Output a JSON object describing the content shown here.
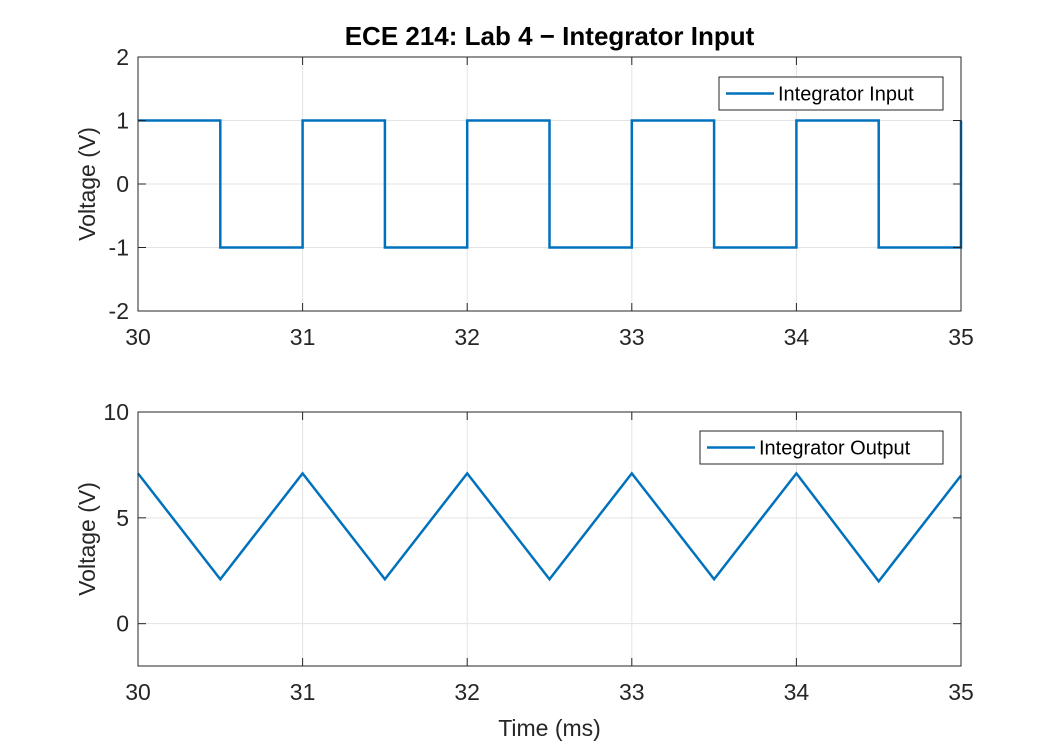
{
  "figure": {
    "background": "#ffffff",
    "line_color": "#0072BD"
  },
  "chart_data": [
    {
      "type": "line",
      "title": "ECE 214: Lab 4 − Integrator Input",
      "xlabel": "",
      "ylabel": "Voltage (V)",
      "xlim": [
        30,
        35
      ],
      "ylim": [
        -2,
        2
      ],
      "xticks": [
        30,
        31,
        32,
        33,
        34,
        35
      ],
      "xtick_labels": [
        "30",
        "31",
        "32",
        "33",
        "34",
        "35"
      ],
      "yticks": [
        -2,
        -1,
        0,
        1,
        2
      ],
      "ytick_labels": [
        "-2",
        "-1",
        "0",
        "1",
        "2"
      ],
      "grid": true,
      "legend_position": "top-right",
      "series": [
        {
          "name": "Integrator Input",
          "color": "#0072BD",
          "x": [
            30,
            30.5,
            30.5,
            31,
            31,
            31.5,
            31.5,
            32,
            32,
            32.5,
            32.5,
            33,
            33,
            33.5,
            33.5,
            34,
            34,
            34.5,
            34.5,
            35,
            35
          ],
          "y": [
            1,
            1,
            -1,
            -1,
            1,
            1,
            -1,
            -1,
            1,
            1,
            -1,
            -1,
            1,
            1,
            -1,
            -1,
            1,
            1,
            -1,
            -1,
            1
          ]
        }
      ]
    },
    {
      "type": "line",
      "title": "",
      "xlabel": "Time (ms)",
      "ylabel": "Voltage (V)",
      "xlim": [
        30,
        35
      ],
      "ylim": [
        -2,
        10
      ],
      "xticks": [
        30,
        31,
        32,
        33,
        34,
        35
      ],
      "xtick_labels": [
        "30",
        "31",
        "32",
        "33",
        "34",
        "35"
      ],
      "yticks": [
        0,
        5,
        10
      ],
      "ytick_labels": [
        "0",
        "5",
        "10"
      ],
      "grid": true,
      "legend_position": "top-right",
      "series": [
        {
          "name": "Integrator Output",
          "color": "#0072BD",
          "x": [
            30,
            30.5,
            31,
            31.5,
            32,
            32.5,
            33,
            33.5,
            34,
            34.5,
            35
          ],
          "y": [
            7.1,
            2.1,
            7.1,
            2.1,
            7.1,
            2.1,
            7.1,
            2.1,
            7.1,
            2.0,
            7.0
          ]
        }
      ]
    }
  ]
}
